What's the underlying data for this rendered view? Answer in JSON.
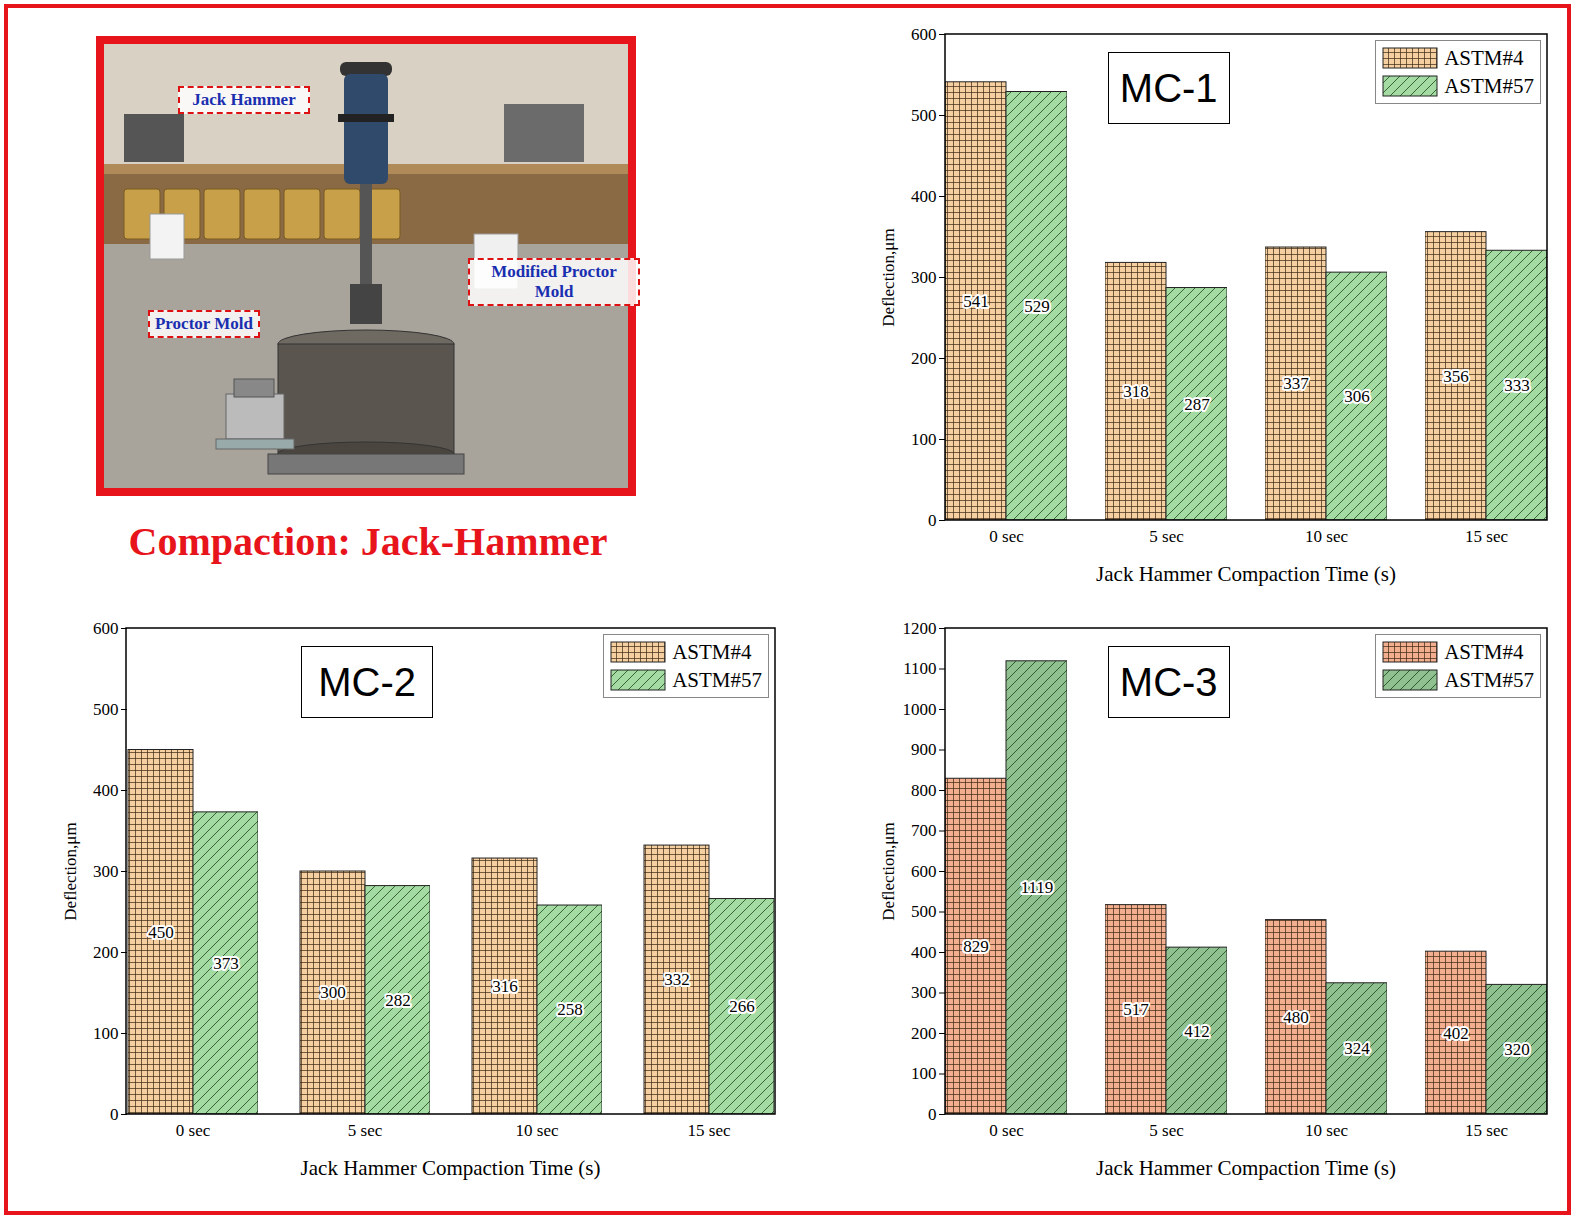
{
  "figure": {
    "caption": "Compaction: Jack-Hammer",
    "photo_labels": [
      "Jack Hammer",
      "Modified Proctor Mold",
      "Proctor Mold"
    ]
  },
  "chart_data": [
    {
      "type": "bar",
      "title": "MC-1",
      "categories": [
        "0 sec",
        "5 sec",
        "10 sec",
        "15 sec"
      ],
      "series": [
        {
          "name": "ASTM#4",
          "color": "#f5cfa0",
          "values": [
            541,
            318,
            337,
            356
          ]
        },
        {
          "name": "ASTM#57",
          "color": "#a3dba3",
          "values": [
            529,
            287,
            306,
            333
          ]
        }
      ],
      "x_label": "Jack Hammer Compaction Time (s)",
      "y_label": "Deflection,μm",
      "ylim": [
        0,
        600
      ],
      "yticks": [
        0,
        100,
        200,
        300,
        400,
        500,
        600
      ],
      "grid": false,
      "legend": "top-right",
      "data_labels": true
    },
    {
      "type": "bar",
      "title": "MC-2",
      "categories": [
        "0 sec",
        "5 sec",
        "10 sec",
        "15 sec"
      ],
      "series": [
        {
          "name": "ASTM#4",
          "color": "#f5cfa0",
          "values": [
            450,
            300,
            316,
            332
          ]
        },
        {
          "name": "ASTM#57",
          "color": "#a3dba3",
          "values": [
            373,
            282,
            258,
            266
          ]
        }
      ],
      "x_label": "Jack Hammer Compaction Time (s)",
      "y_label": "Deflection,μm",
      "ylim": [
        0,
        600
      ],
      "yticks": [
        0,
        100,
        200,
        300,
        400,
        500,
        600
      ],
      "grid": false,
      "legend": "top-right",
      "data_labels": true
    },
    {
      "type": "bar",
      "title": "MC-3",
      "categories": [
        "0 sec",
        "5 sec",
        "10 sec",
        "15 sec"
      ],
      "series": [
        {
          "name": "ASTM#4",
          "color": "#f2ae8e",
          "values": [
            829,
            517,
            480,
            402
          ]
        },
        {
          "name": "ASTM#57",
          "color": "#8fc08f",
          "values": [
            1119,
            412,
            324,
            320
          ]
        }
      ],
      "x_label": "Jack Hammer Compaction Time (s)",
      "y_label": "Deflection,μm",
      "ylim": [
        0,
        1200
      ],
      "yticks": [
        0,
        100,
        200,
        300,
        400,
        500,
        600,
        700,
        800,
        900,
        1000,
        1100,
        1200
      ],
      "grid": false,
      "legend": "top-right",
      "data_labels": true
    }
  ]
}
